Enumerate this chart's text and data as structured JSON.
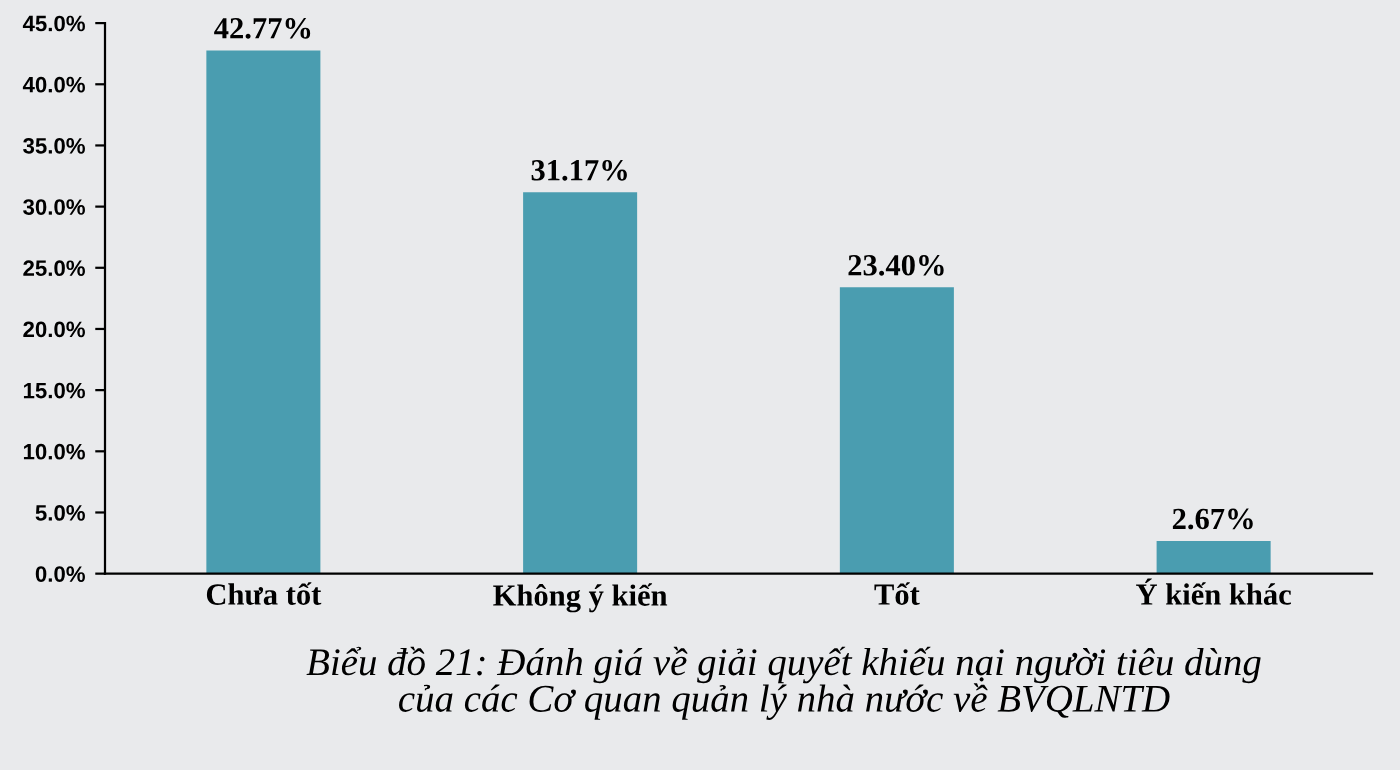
{
  "chart_data": {
    "type": "bar",
    "categories": [
      "Chưa tốt",
      "Không ý kiến",
      "Tốt",
      "Ý kiến khác"
    ],
    "values": [
      42.77,
      31.17,
      23.4,
      2.67
    ],
    "value_labels": [
      "42.77%",
      "31.17%",
      "23.40%",
      "2.67%"
    ],
    "color": "#4a9db0",
    "ylim": [
      0,
      45
    ],
    "yticks": [
      {
        "value": 0,
        "label": "0.0%"
      },
      {
        "value": 5,
        "label": "5.0%"
      },
      {
        "value": 10,
        "label": "10.0%"
      },
      {
        "value": 15,
        "label": "15.0%"
      },
      {
        "value": 20,
        "label": "20.0%"
      },
      {
        "value": 25,
        "label": "25.0%"
      },
      {
        "value": 30,
        "label": "30.0%"
      },
      {
        "value": 35,
        "label": "35.0%"
      },
      {
        "value": 40,
        "label": "40.0%"
      },
      {
        "value": 45,
        "label": "45.0%"
      }
    ],
    "grid": false,
    "annotations": [
      "Biểu đồ 21: Đánh giá về giải quyết khiếu nại người tiêu dùng\ncủa các Cơ quan quản lý nhà nước về BVQLNTD"
    ]
  }
}
